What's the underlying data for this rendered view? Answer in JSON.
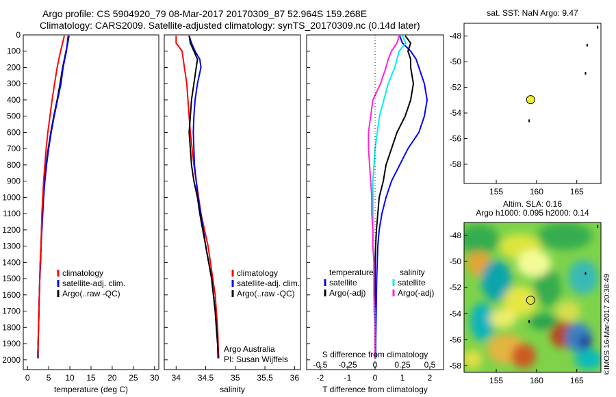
{
  "header": {
    "line1": "Argo profile: CS 5904920_79 08-Mar-2017 20170309_87 52.964S 159.268E",
    "line2": "Climatology: CARS2009. Satellite-adjusted climatology: synTS_20170309.nc (0.14d later)"
  },
  "colors": {
    "climatology": "#ff0000",
    "satellite": "#0000ff",
    "argo": "#000000",
    "s_sat": "#00eeee",
    "s_argo": "#ff22dd",
    "marker": "#eeee33"
  },
  "credit": "©IMOS 16-Mar-2017 20:38:49",
  "chart_data": [
    {
      "type": "line",
      "xlabel": "temperature (deg C)",
      "ylabel": "",
      "xlim": [
        -1,
        31
      ],
      "ylim": [
        2060,
        0
      ],
      "y_reversed": true,
      "xticks": [
        "0",
        "5",
        "10",
        "15",
        "20",
        "25",
        "30"
      ],
      "yticks": [
        "0",
        "100",
        "200",
        "300",
        "400",
        "500",
        "600",
        "700",
        "800",
        "900",
        "1000",
        "1100",
        "1200",
        "1300",
        "1400",
        "1500",
        "1600",
        "1700",
        "1800",
        "1900",
        "2000"
      ],
      "legend": [
        "climatology",
        "satellite-adj. clim.",
        "Argo(..raw -QC)"
      ],
      "depth": [
        5,
        50,
        100,
        150,
        200,
        300,
        400,
        500,
        600,
        700,
        800,
        900,
        1000,
        1100,
        1200,
        1300,
        1400,
        1500,
        1600,
        1700,
        1800,
        1900,
        1990
      ],
      "series": [
        {
          "name": "climatology",
          "values": [
            8.7,
            8.3,
            7.8,
            7.4,
            7.0,
            6.4,
            5.8,
            5.3,
            4.8,
            4.4,
            4.1,
            3.8,
            3.6,
            3.4,
            3.3,
            3.2,
            3.0,
            2.9,
            2.8,
            2.7,
            2.6,
            2.5,
            2.4
          ]
        },
        {
          "name": "satellite-adj. clim.",
          "values": [
            9.6,
            9.4,
            9.2,
            8.8,
            8.4,
            7.9,
            7.1,
            6.3,
            5.6,
            5.0,
            4.5,
            4.1,
            3.8,
            3.6,
            3.4,
            3.2,
            3.1,
            2.9,
            2.8,
            2.7,
            2.6,
            2.5,
            2.4
          ]
        },
        {
          "name": "Argo(..raw -QC)",
          "values": [
            9.8,
            9.5,
            9.1,
            8.7,
            8.3,
            7.7,
            7.0,
            6.2,
            5.5,
            4.9,
            4.4,
            4.0,
            3.7,
            3.5,
            3.3,
            3.2,
            3.0,
            2.9,
            2.8,
            2.7,
            2.6,
            2.5,
            2.5
          ]
        }
      ]
    },
    {
      "type": "line",
      "xlabel": "salinity",
      "ylabel": "",
      "xlim": [
        33.8,
        36.1
      ],
      "ylim": [
        2060,
        0
      ],
      "y_reversed": true,
      "xticks": [
        "34",
        "34.5",
        "35",
        "35.5",
        "36"
      ],
      "legend": [
        "climatology",
        "satellite-adj. clim.",
        "Argo(..raw -QC)"
      ],
      "annotations": [
        "Argo Australia",
        "PI: Susan Wijffels"
      ],
      "depth": [
        5,
        50,
        100,
        150,
        200,
        300,
        400,
        500,
        600,
        700,
        800,
        900,
        1000,
        1100,
        1200,
        1300,
        1400,
        1500,
        1600,
        1700,
        1800,
        1900,
        1990
      ],
      "series": [
        {
          "name": "climatology",
          "values": [
            34.0,
            34.0,
            34.1,
            34.12,
            34.14,
            34.18,
            34.2,
            34.22,
            34.24,
            34.27,
            34.3,
            34.34,
            34.38,
            34.42,
            34.48,
            34.54,
            34.58,
            34.62,
            34.66,
            34.68,
            34.7,
            34.71,
            34.72
          ]
        },
        {
          "name": "satellite-adj. clim.",
          "values": [
            34.22,
            34.26,
            34.32,
            34.4,
            34.42,
            34.36,
            34.32,
            34.3,
            34.29,
            34.3,
            34.31,
            34.34,
            34.37,
            34.42,
            34.46,
            34.5,
            34.55,
            34.6,
            34.63,
            34.66,
            34.68,
            34.7,
            34.71
          ]
        },
        {
          "name": "Argo(..raw -QC)",
          "values": [
            34.22,
            34.24,
            34.3,
            34.36,
            34.34,
            34.3,
            34.26,
            34.24,
            34.22,
            34.24,
            34.26,
            34.3,
            34.36,
            34.4,
            34.45,
            34.5,
            34.55,
            34.6,
            34.63,
            34.66,
            34.68,
            34.7,
            34.71
          ]
        }
      ]
    },
    {
      "type": "line",
      "xlabel": "T difference from climatology",
      "top_axis_label": "S difference from climatology",
      "xlim": [
        -2.5,
        2.5
      ],
      "ylim": [
        2060,
        0
      ],
      "y_reversed": true,
      "xticks": [
        "-2",
        "-1",
        "0",
        "1",
        "2"
      ],
      "top_ticks": [
        "-0.5",
        "-0.25",
        "0",
        "0.25",
        "0.5"
      ],
      "legend_titles": [
        "temperature",
        "salinity"
      ],
      "legend": [
        "satellite",
        "Argo(-adj)",
        "satellite",
        "Argo(-adj)"
      ],
      "depth": [
        5,
        50,
        100,
        150,
        200,
        300,
        400,
        500,
        600,
        700,
        800,
        900,
        1000,
        1100,
        1200,
        1300,
        1400,
        1500,
        1600,
        1700,
        1800,
        1900,
        1990
      ],
      "series": [
        {
          "name": "temperature satellite",
          "values": [
            0.9,
            1.0,
            1.3,
            1.5,
            1.6,
            1.8,
            1.9,
            1.8,
            1.6,
            1.2,
            0.9,
            0.6,
            0.4,
            0.25,
            0.15,
            0.1,
            0.08,
            0.06,
            0.05,
            0.04,
            0.03,
            0.02,
            0.02
          ]
        },
        {
          "name": "temperature Argo(-adj)",
          "values": [
            1.1,
            1.3,
            1.2,
            1.3,
            1.3,
            1.4,
            1.3,
            1.1,
            0.8,
            0.6,
            0.4,
            0.3,
            0.15,
            0.1,
            0.05,
            0.02,
            0.0,
            0.0,
            0.0,
            0.0,
            0.0,
            0.0,
            0.0
          ]
        },
        {
          "name": "salinity satellite",
          "values": [
            0.25,
            0.28,
            0.22,
            0.2,
            0.18,
            0.12,
            0.08,
            0.04,
            0.02,
            0.0,
            -0.01,
            -0.02,
            -0.02,
            -0.02,
            -0.02,
            -0.02,
            -0.01,
            -0.01,
            -0.01,
            -0.01,
            0.0,
            0.0,
            0.0
          ]
        },
        {
          "name": "salinity Argo(-adj)",
          "values": [
            0.22,
            0.2,
            0.15,
            0.12,
            0.1,
            0.05,
            -0.02,
            -0.04,
            -0.06,
            -0.06,
            -0.05,
            -0.04,
            -0.03,
            -0.03,
            -0.02,
            -0.02,
            -0.01,
            -0.01,
            -0.01,
            0.0,
            0.0,
            0.0,
            0.0
          ]
        }
      ]
    },
    {
      "type": "scatter",
      "title": "sat. SST: NaN Argo: 9.47",
      "xlim": [
        151,
        168
      ],
      "ylim": [
        -59.5,
        -47
      ],
      "xticks": [
        "155",
        "160",
        "165"
      ],
      "yticks": [
        "-48",
        "-50",
        "-52",
        "-54",
        "-56",
        "-58"
      ],
      "profile_location": {
        "lon": 159.268,
        "lat": -52.964
      }
    },
    {
      "type": "heatmap",
      "title": "Altim. SLA: 0.16",
      "subtitle": "Argo h1000: 0.095 h2000: 0.14",
      "xlim": [
        151,
        168
      ],
      "ylim": [
        -58.5,
        -47
      ],
      "xticks": [
        "155",
        "160",
        "165"
      ],
      "yticks": [
        "-48",
        "-50",
        "-52",
        "-54",
        "-56",
        "-58"
      ],
      "profile_location": {
        "lon": 159.268,
        "lat": -52.964
      }
    }
  ]
}
